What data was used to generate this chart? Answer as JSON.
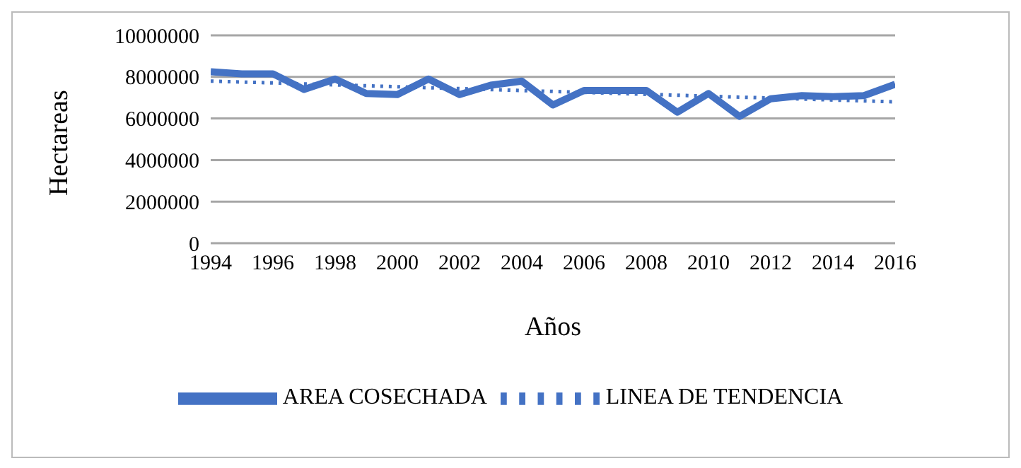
{
  "chart_data": {
    "type": "line",
    "xlabel": "Años",
    "ylabel": "Hectareas",
    "x": [
      1994,
      1995,
      1996,
      1997,
      1998,
      1999,
      2000,
      2001,
      2002,
      2003,
      2004,
      2005,
      2006,
      2007,
      2008,
      2009,
      2010,
      2011,
      2012,
      2013,
      2014,
      2015,
      2016
    ],
    "series": [
      {
        "name": "AREA COSECHADA",
        "color": "#4472c4",
        "line_style": "solid",
        "values": [
          8250000,
          8150000,
          8150000,
          7400000,
          7900000,
          7200000,
          7150000,
          7900000,
          7150000,
          7600000,
          7800000,
          6650000,
          7350000,
          7350000,
          7350000,
          6300000,
          7200000,
          6100000,
          6950000,
          7100000,
          7050000,
          7100000,
          7650000
        ]
      },
      {
        "name": "LINEA DE TENDENCIA",
        "color": "#4472c4",
        "line_style": "dotted",
        "x": [
          1994,
          2016
        ],
        "values": [
          7800000,
          6800000
        ]
      }
    ],
    "xlim": [
      1994,
      2016
    ],
    "xticks": [
      1994,
      1996,
      1998,
      2000,
      2002,
      2004,
      2006,
      2008,
      2010,
      2012,
      2014,
      2016
    ],
    "ylim": [
      0,
      10000000
    ],
    "yticks": [
      0,
      2000000,
      4000000,
      6000000,
      8000000,
      10000000
    ],
    "grid": "y",
    "legend": "bottom",
    "marker": "none"
  }
}
